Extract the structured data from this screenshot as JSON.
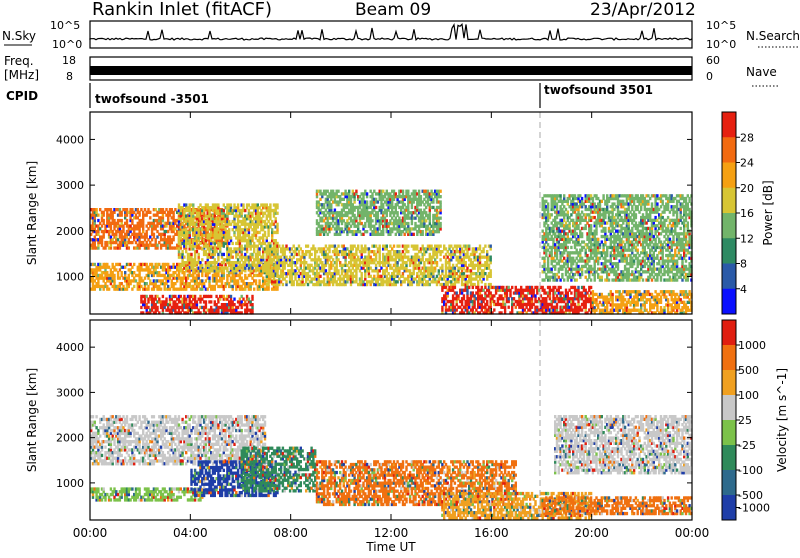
{
  "header": {
    "station": "Rankin Inlet (fitACF)",
    "beam": "Beam 09",
    "date": "23/Apr/2012"
  },
  "noise_panel": {
    "left_label": "N.Sky",
    "right_label": "N.Search",
    "left_ticks": [
      "10^5",
      "10^0"
    ],
    "right_ticks": [
      "10^5",
      "10^0"
    ]
  },
  "freq_panel": {
    "left_label": "Freq.",
    "left_unit": "[MHz]",
    "left_ticks": [
      "18",
      "8"
    ],
    "right_label": "Nave",
    "right_ticks": [
      "60",
      "0"
    ]
  },
  "cpid_panel": {
    "label": "CPID",
    "segments": [
      {
        "name": "twofsound -3501",
        "start": "00:00"
      },
      {
        "name": "twofsound 3501",
        "start": "17:55"
      }
    ]
  },
  "time_axis": {
    "label": "Time UT",
    "ticks": [
      "00:00",
      "04:00",
      "08:00",
      "12:00",
      "16:00",
      "20:00",
      "00:00"
    ]
  },
  "chart_data": [
    {
      "type": "heatmap",
      "title": "",
      "xlabel": "Time UT",
      "ylabel": "Slant Range [km]",
      "x_range_hours": [
        0,
        24
      ],
      "ylim": [
        180,
        4600
      ],
      "yticks": [
        1000,
        2000,
        3000,
        4000
      ],
      "colorbar": {
        "label": "Power [dB]",
        "ticks": [
          4,
          8,
          12,
          16,
          20,
          24,
          28
        ],
        "colors": [
          "#0a10ff",
          "#2a5aa8",
          "#2e8a63",
          "#72b46a",
          "#d7c534",
          "#f5a012",
          "#f26a10",
          "#e62010"
        ]
      },
      "structures": [
        {
          "t0": 0.0,
          "t1": 5.5,
          "r0": 1600,
          "r1": 2500,
          "level": 24
        },
        {
          "t0": 0.0,
          "t1": 7.5,
          "r0": 700,
          "r1": 1300,
          "level": 20
        },
        {
          "t0": 2.0,
          "t1": 6.5,
          "r0": 180,
          "r1": 600,
          "level": 28
        },
        {
          "t0": 3.5,
          "t1": 7.5,
          "r0": 1100,
          "r1": 2600,
          "level": 16
        },
        {
          "t0": 7.0,
          "t1": 16.0,
          "r0": 800,
          "r1": 1700,
          "level": 16
        },
        {
          "t0": 9.0,
          "t1": 14.0,
          "r0": 1900,
          "r1": 2900,
          "level": 12
        },
        {
          "t0": 14.0,
          "t1": 20.0,
          "r0": 180,
          "r1": 800,
          "level": 28
        },
        {
          "t0": 18.0,
          "t1": 24.0,
          "r0": 900,
          "r1": 2800,
          "level": 12
        },
        {
          "t0": 20.0,
          "t1": 24.0,
          "r0": 180,
          "r1": 700,
          "level": 20
        }
      ]
    },
    {
      "type": "heatmap",
      "title": "",
      "xlabel": "Time UT",
      "ylabel": "Slant Range [km]",
      "x_range_hours": [
        0,
        24
      ],
      "ylim": [
        180,
        4600
      ],
      "yticks": [
        1000,
        2000,
        3000,
        4000
      ],
      "colorbar": {
        "label": "Velocity [m s^-1]",
        "ticks": [
          "1000",
          "500",
          "100",
          "25",
          "-25",
          "-100",
          "-500",
          "-1000"
        ],
        "colors": [
          "#1f3ea8",
          "#2e6a8c",
          "#2f8a5a",
          "#7cc24a",
          "#c8c8c8",
          "#f0a020",
          "#f07010",
          "#e01e10"
        ]
      },
      "structures": [
        {
          "t0": 0.0,
          "t1": 7.0,
          "r0": 1400,
          "r1": 2500,
          "level": "grey"
        },
        {
          "t0": 0.0,
          "t1": 4.5,
          "r0": 600,
          "r1": 900,
          "level": "green"
        },
        {
          "t0": 4.0,
          "t1": 7.5,
          "r0": 700,
          "r1": 1500,
          "level": "blue"
        },
        {
          "t0": 6.0,
          "t1": 9.0,
          "r0": 800,
          "r1": 1800,
          "level": "darkgreen"
        },
        {
          "t0": 9.0,
          "t1": 17.0,
          "r0": 500,
          "r1": 1500,
          "level": "orange"
        },
        {
          "t0": 14.0,
          "t1": 20.0,
          "r0": 200,
          "r1": 800,
          "level": "lightorange"
        },
        {
          "t0": 18.0,
          "t1": 24.0,
          "r0": 300,
          "r1": 700,
          "level": "orange"
        },
        {
          "t0": 18.5,
          "t1": 24.0,
          "r0": 1200,
          "r1": 2500,
          "level": "grey"
        }
      ]
    }
  ]
}
